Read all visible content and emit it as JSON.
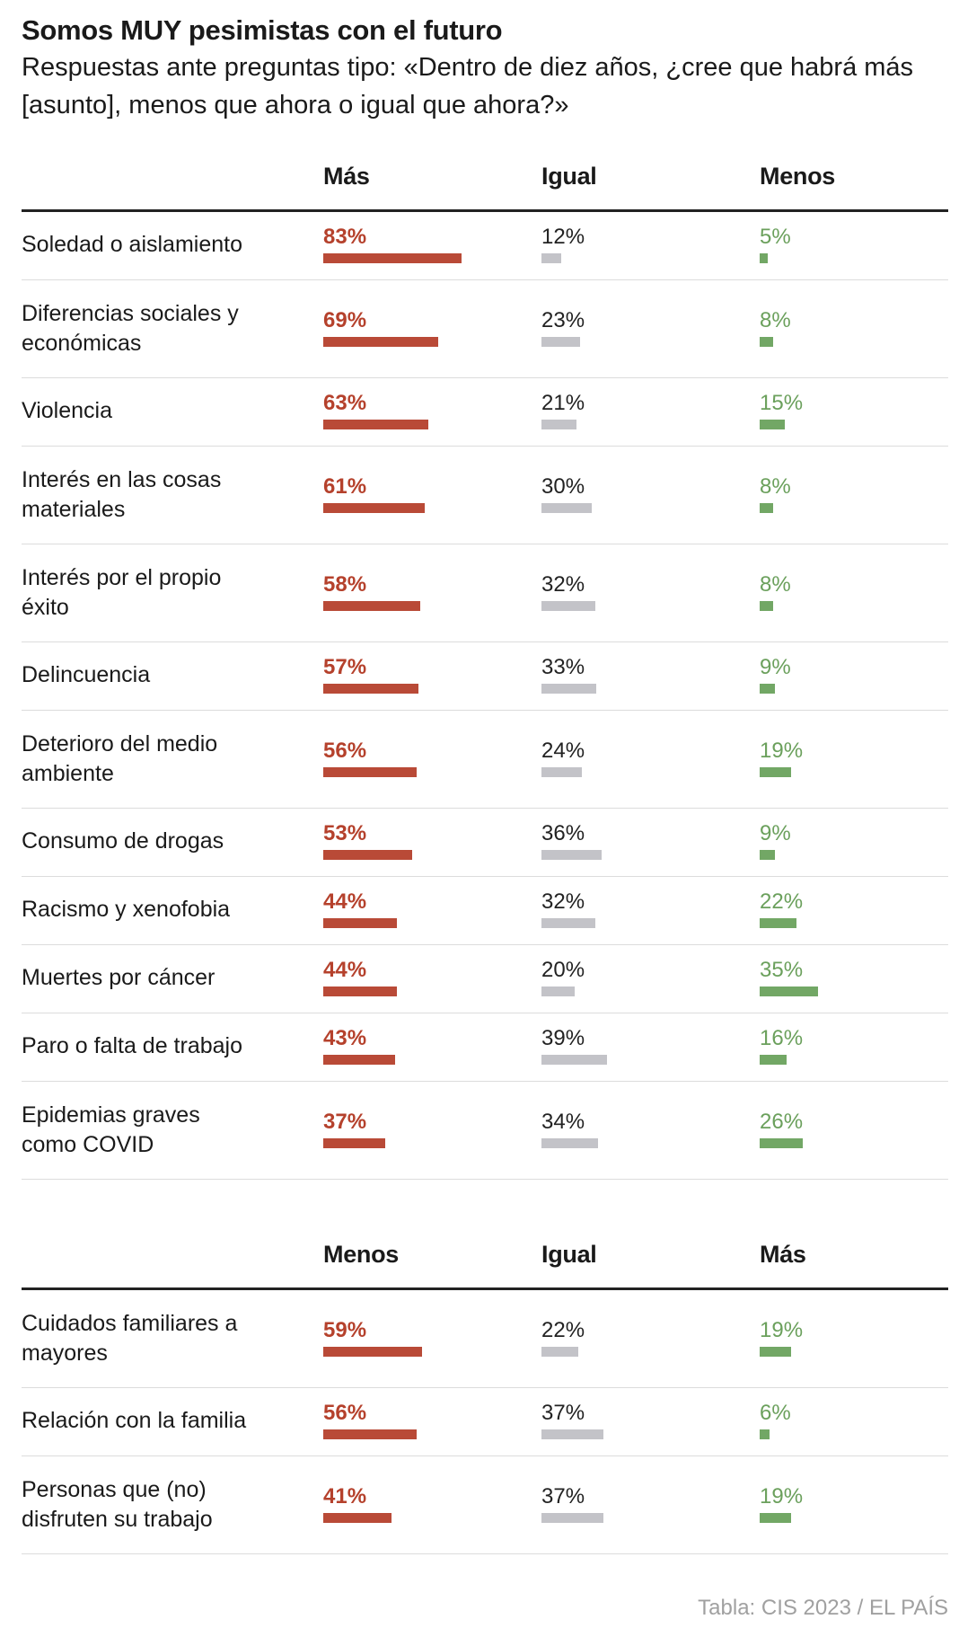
{
  "title": "Somos MUY pesimistas con el futuro",
  "subtitle": "Respuestas ante preguntas tipo: «Dentro de diez años, ¿cree que habrá más [asunto], menos que ahora o igual que ahora?»",
  "source": "Tabla: CIS 2023 / EL PAÍS",
  "colors": {
    "first_column": "#b94a37",
    "igual": "#c3c3c8",
    "third_column": "#72a765"
  },
  "chart_data": [
    {
      "type": "table",
      "columns": [
        "Más",
        "Igual",
        "Menos"
      ],
      "unit": "%",
      "rows": [
        {
          "label": "Soledad o aislamiento",
          "values": [
            83,
            12,
            5
          ]
        },
        {
          "label": "Diferencias sociales y económicas",
          "values": [
            69,
            23,
            8
          ]
        },
        {
          "label": "Violencia",
          "values": [
            63,
            21,
            15
          ]
        },
        {
          "label": "Interés en las cosas materiales",
          "values": [
            61,
            30,
            8
          ]
        },
        {
          "label": "Interés por el propio éxito",
          "values": [
            58,
            32,
            8
          ]
        },
        {
          "label": "Delincuencia",
          "values": [
            57,
            33,
            9
          ]
        },
        {
          "label": "Deterioro del medio ambiente",
          "values": [
            56,
            24,
            19
          ]
        },
        {
          "label": "Consumo de drogas",
          "values": [
            53,
            36,
            9
          ]
        },
        {
          "label": "Racismo y xenofobia",
          "values": [
            44,
            32,
            22
          ]
        },
        {
          "label": "Muertes por cáncer",
          "values": [
            44,
            20,
            35
          ]
        },
        {
          "label": "Paro o falta de trabajo",
          "values": [
            43,
            39,
            16
          ]
        },
        {
          "label": "Epidemias graves como COVID",
          "values": [
            37,
            34,
            26
          ]
        }
      ]
    },
    {
      "type": "table",
      "columns": [
        "Menos",
        "Igual",
        "Más"
      ],
      "unit": "%",
      "rows": [
        {
          "label": "Cuidados familiares a mayores",
          "values": [
            59,
            22,
            19
          ]
        },
        {
          "label": "Relación con la familia",
          "values": [
            56,
            37,
            6
          ]
        },
        {
          "label": "Personas que (no) disfruten su trabajo",
          "values": [
            41,
            37,
            19
          ]
        }
      ]
    }
  ]
}
